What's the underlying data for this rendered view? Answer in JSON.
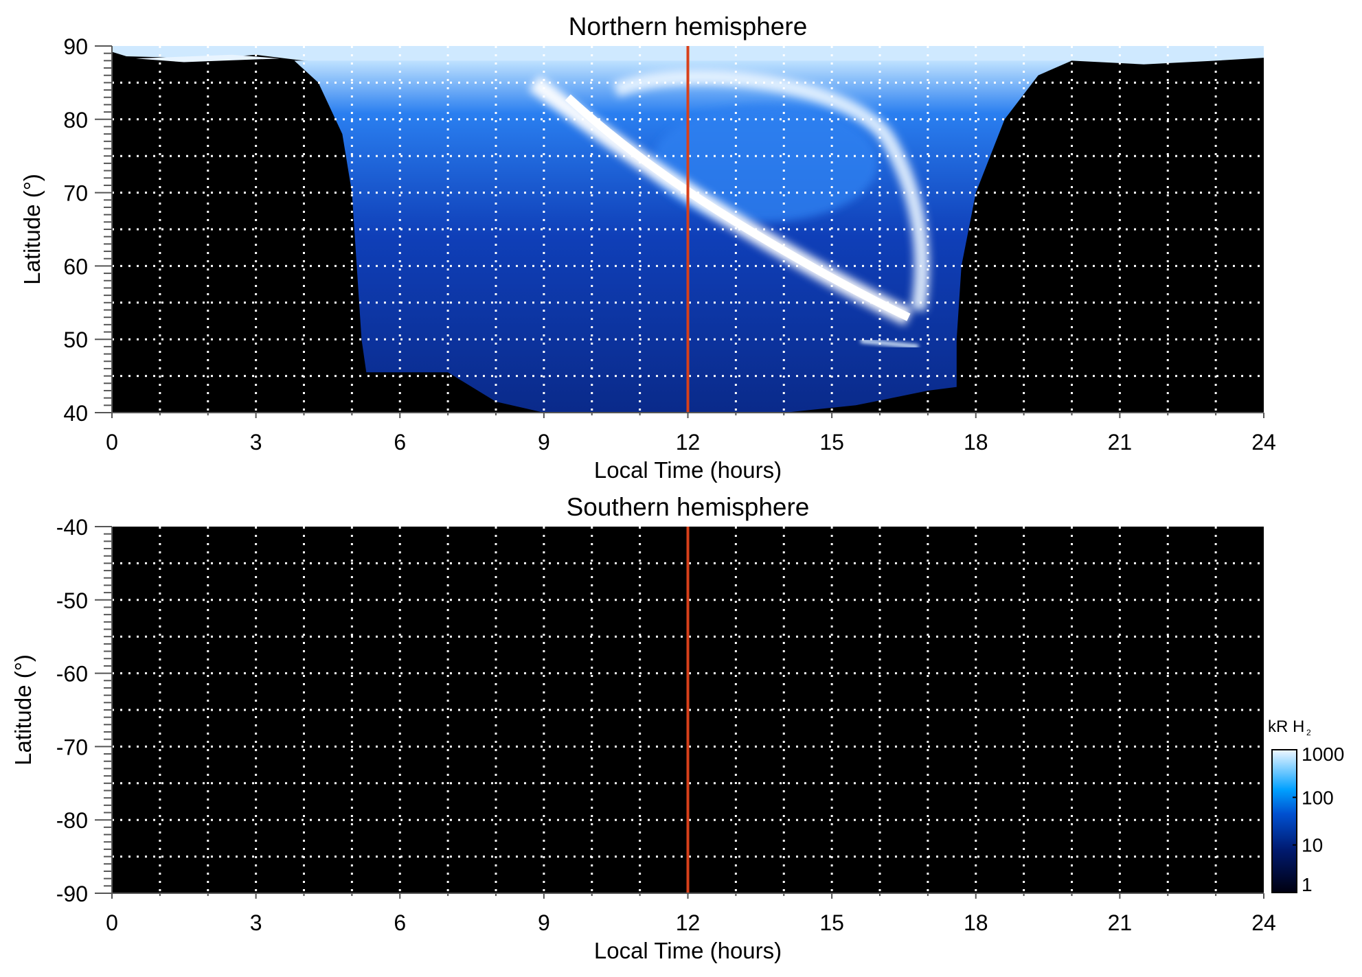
{
  "chart_data": [
    {
      "type": "heatmap",
      "title": "Northern hemisphere",
      "xlabel": "Local Time (hours)",
      "ylabel": "Latitude (°)",
      "xlim": [
        0,
        24
      ],
      "ylim": [
        40,
        90
      ],
      "xticks": [
        "0",
        "3",
        "6",
        "9",
        "12",
        "15",
        "18",
        "21",
        "24"
      ],
      "yticks": [
        "40",
        "50",
        "60",
        "70",
        "80",
        "90"
      ],
      "grid": true,
      "marker_line_x": 12,
      "description_of_emission": "emission between ~5 and ~17.6 h LT; bright arc from ~10 h, 82° to ~16.5 h, 52°"
    },
    {
      "type": "heatmap",
      "title": "Southern hemisphere",
      "xlabel": "Local Time (hours)",
      "ylabel": "Latitude (°)",
      "xlim": [
        0,
        24
      ],
      "ylim": [
        -90,
        -40
      ],
      "xticks": [
        "0",
        "3",
        "6",
        "9",
        "12",
        "15",
        "18",
        "21",
        "24"
      ],
      "yticks": [
        "-40",
        "-50",
        "-60",
        "-70",
        "-80",
        "-90"
      ],
      "grid": true,
      "marker_line_x": 12
    }
  ],
  "colorbar": {
    "label": "kR H",
    "label_sub": "2",
    "scale": "log",
    "range": [
      1,
      1000
    ],
    "ticks": [
      "1",
      "10",
      "100",
      "1000"
    ]
  },
  "colors": {
    "marker_line": "#d8401a",
    "background": "#000000",
    "grid": "#ffffff"
  }
}
